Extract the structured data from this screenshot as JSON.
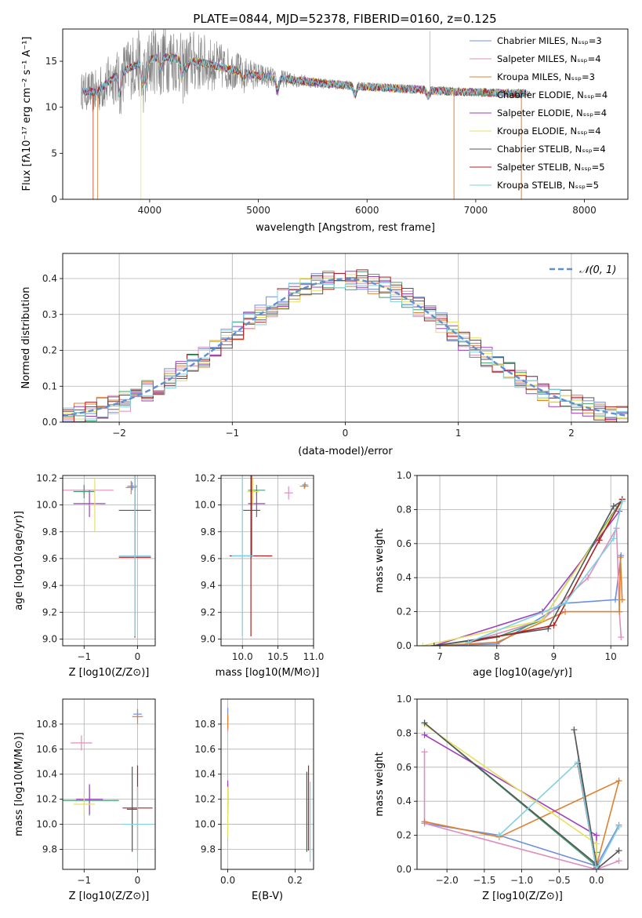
{
  "colors": [
    "#6f8fdf",
    "#df8fbf",
    "#e0802f",
    "#3fa06f",
    "#9f3fbf",
    "#e6e05f",
    "#555555",
    "#b02020",
    "#7fd0e0"
  ],
  "chart_data": [
    {
      "type": "line",
      "title": "PLATE=0844, MJD=52378, FIBERID=0160, z=0.125",
      "xlabel": "wavelength [Angstrom, rest frame]",
      "ylabel": "Flux [f_λ 10^-17 erg cm^-2 s^-1 A^-1]",
      "xlim": [
        3200,
        8400
      ],
      "ylim": [
        0,
        18.5
      ],
      "xticks": [
        4000,
        5000,
        6000,
        7000,
        8000
      ],
      "yticks": [
        0,
        5,
        10,
        15
      ],
      "legend_position": "top-right",
      "series": [
        {
          "name": "Chabrier MILES, N_SSP=3",
          "color": "#6f8fdf"
        },
        {
          "name": "Salpeter MILES, N_SSP=4",
          "color": "#df8fbf"
        },
        {
          "name": "Kroupa MILES, N_SSP=3",
          "color": "#e0802f"
        },
        {
          "name": "Chabrier ELODIE, N_SSP=4",
          "color": "#3fa06f"
        },
        {
          "name": "Salpeter ELODIE, N_SSP=4",
          "color": "#9f3fbf"
        },
        {
          "name": "Kroupa ELODIE, N_SSP=4",
          "color": "#e6e05f"
        },
        {
          "name": "Chabrier STELIB, N_SSP=4",
          "color": "#555555"
        },
        {
          "name": "Salpeter STELIB, N_SSP=5",
          "color": "#b02020"
        },
        {
          "name": "Kroupa STELIB, N_SSP=5",
          "color": "#7fd0e0"
        }
      ],
      "data_continuum": {
        "x": [
          3370,
          3500,
          3700,
          3900,
          4100,
          4300,
          4500,
          4800,
          5000,
          5300,
          5600,
          5900,
          6200,
          6500,
          6800,
          7100,
          7300,
          7500
        ],
        "y": [
          11.8,
          11.6,
          13.5,
          14.8,
          15.5,
          15.2,
          14.8,
          14.0,
          13.4,
          13.0,
          12.6,
          12.3,
          12.1,
          11.9,
          11.7,
          11.6,
          11.5,
          11.5
        ]
      }
    },
    {
      "type": "line",
      "xlabel": "(data-model)/error",
      "ylabel": "Normed distribution",
      "xlim": [
        -2.5,
        2.5
      ],
      "ylim": [
        0,
        0.47
      ],
      "xticks": [
        -2,
        -1,
        0,
        1,
        2
      ],
      "yticks": [
        0.0,
        0.1,
        0.2,
        0.3,
        0.4
      ],
      "gaussian_label": "𝒩(0, 1)",
      "hist_bin_width": 0.1
    },
    {
      "type": "scatter",
      "xlabel": "Z [log10(Z/Z⊙)]",
      "ylabel": "age  [log10(age/yr)]",
      "xlim": [
        -1.4,
        0.33
      ],
      "ylim": [
        8.95,
        10.22
      ],
      "xticks": [
        -1,
        0
      ],
      "yticks": [
        9.0,
        9.2,
        9.4,
        9.6,
        9.8,
        10.0,
        10.2
      ],
      "points": [
        {
          "x": -0.12,
          "y": 10.13,
          "xerr": 0.1,
          "yerr": 0.05,
          "s": 2
        },
        {
          "x": -1.0,
          "y": 10.11,
          "xerr": 0.55,
          "yerr": 0.03,
          "s": 1
        },
        {
          "x": -0.9,
          "y": 10.01,
          "xerr": 0.3,
          "yerr": 0.1,
          "s": 4
        },
        {
          "x": -0.1,
          "y": 10.14,
          "xerr": 0.09,
          "yerr": 0.03,
          "s": 0
        },
        {
          "x": -1.0,
          "y": 10.1,
          "xerr": 0.2,
          "yerr": 0.05,
          "s": 3
        },
        {
          "x": -0.8,
          "y": 10.0,
          "xerr": 0.1,
          "yerr": 0.2,
          "s": 5
        },
        {
          "x": -0.05,
          "y": 9.96,
          "xerr": 0.3,
          "yerr": 0.35,
          "s": 6
        },
        {
          "x": -0.05,
          "y": 9.61,
          "xerr": 0.3,
          "yerr": 0.6,
          "s": 7
        },
        {
          "x": -0.05,
          "y": 9.62,
          "xerr": 0.3,
          "yerr": 0.6,
          "s": 8
        }
      ]
    },
    {
      "type": "scatter",
      "xlabel": "mass [log10(M/M⊙)]",
      "xlim": [
        9.7,
        11.0
      ],
      "ylim": [
        8.95,
        10.22
      ],
      "xticks": [
        10.0,
        10.5,
        11.0
      ],
      "yticks": [
        9.0,
        9.2,
        9.4,
        9.6,
        9.8,
        10.0,
        10.2
      ],
      "points": [
        {
          "x": 10.88,
          "y": 10.15,
          "xerr": 0.04,
          "yerr": 0.02,
          "s": 0
        },
        {
          "x": 10.65,
          "y": 10.09,
          "xerr": 0.06,
          "yerr": 0.05,
          "s": 1
        },
        {
          "x": 10.87,
          "y": 10.14,
          "xerr": 0.06,
          "yerr": 0.02,
          "s": 2
        },
        {
          "x": 10.2,
          "y": 10.11,
          "xerr": 0.12,
          "yerr": 0.04,
          "s": 3
        },
        {
          "x": 10.2,
          "y": 10.01,
          "xerr": 0.12,
          "yerr": 0.1,
          "s": 4
        },
        {
          "x": 10.15,
          "y": 10.1,
          "xerr": 0.08,
          "yerr": 0.1,
          "s": 5
        },
        {
          "x": 10.13,
          "y": 9.96,
          "xerr": 0.12,
          "yerr": 0.35,
          "s": 6
        },
        {
          "x": 10.12,
          "y": 9.62,
          "xerr": 0.3,
          "yerr": 0.6,
          "s": 7
        },
        {
          "x": 10.0,
          "y": 9.62,
          "xerr": 0.15,
          "yerr": 0.6,
          "s": 8
        }
      ]
    },
    {
      "type": "line",
      "xlabel": "age  [log10(age/yr)]",
      "ylabel": "mass weight",
      "xlim": [
        6.6,
        10.3
      ],
      "ylim": [
        0,
        1.0
      ],
      "xticks": [
        7,
        8,
        9,
        10
      ],
      "yticks": [
        0.0,
        0.2,
        0.4,
        0.6,
        0.8,
        1.0
      ],
      "series": [
        {
          "s": 0,
          "x": [
            6.9,
            8.0,
            9.2,
            10.08,
            10.18
          ],
          "y": [
            0.0,
            0.01,
            0.25,
            0.27,
            0.53
          ]
        },
        {
          "s": 1,
          "x": [
            7.5,
            8.8,
            9.6,
            10.1,
            10.15,
            10.18
          ],
          "y": [
            0.02,
            0.15,
            0.4,
            0.69,
            0.2,
            0.05
          ]
        },
        {
          "s": 2,
          "x": [
            6.9,
            8.0,
            9.2,
            10.15,
            10.17,
            10.2
          ],
          "y": [
            0.0,
            0.02,
            0.2,
            0.2,
            0.52,
            0.27
          ]
        },
        {
          "s": 3,
          "x": [
            6.9,
            8.0,
            8.8,
            10.2
          ],
          "y": [
            0.0,
            0.05,
            0.15,
            0.86
          ]
        },
        {
          "s": 4,
          "x": [
            6.9,
            8.8,
            10.15
          ],
          "y": [
            0.0,
            0.2,
            0.79
          ]
        },
        {
          "s": 5,
          "x": [
            6.7,
            8.8,
            10.2
          ],
          "y": [
            0.0,
            0.15,
            0.85
          ]
        },
        {
          "s": 6,
          "x": [
            6.9,
            8.9,
            10.05,
            10.2
          ],
          "y": [
            0.0,
            0.1,
            0.82,
            0.85
          ]
        },
        {
          "s": 7,
          "x": [
            7.5,
            9.0,
            9.8,
            10.2
          ],
          "y": [
            0.02,
            0.12,
            0.62,
            0.86
          ]
        },
        {
          "s": 8,
          "x": [
            7.5,
            9.2,
            10.05,
            10.2
          ],
          "y": [
            0.02,
            0.25,
            0.63,
            0.85
          ]
        }
      ]
    },
    {
      "type": "scatter",
      "xlabel": "Z [log10(Z/Z⊙)]",
      "ylabel": "mass [log10(M/M⊙)]",
      "xlim": [
        -1.4,
        0.33
      ],
      "ylim": [
        9.64,
        11.0
      ],
      "xticks": [
        -1,
        0
      ],
      "yticks": [
        9.8,
        10.0,
        10.2,
        10.4,
        10.6,
        10.8
      ],
      "points": [
        {
          "x": 0.0,
          "y": 10.88,
          "xerr": 0.08,
          "yerr": 0.04,
          "s": 0
        },
        {
          "x": -1.05,
          "y": 10.65,
          "xerr": 0.2,
          "yerr": 0.06,
          "s": 1
        },
        {
          "x": 0.0,
          "y": 10.86,
          "xerr": 0.1,
          "yerr": 0.06,
          "s": 2
        },
        {
          "x": -0.9,
          "y": 10.19,
          "xerr": 0.55,
          "yerr": 0.12,
          "s": 3
        },
        {
          "x": -0.9,
          "y": 10.2,
          "xerr": 0.25,
          "yerr": 0.12,
          "s": 4
        },
        {
          "x": -1.0,
          "y": 10.16,
          "xerr": 0.2,
          "yerr": 0.08,
          "s": 5
        },
        {
          "x": -0.1,
          "y": 10.12,
          "xerr": 0.1,
          "yerr": 0.34,
          "s": 6
        },
        {
          "x": 0.0,
          "y": 10.13,
          "xerr": 0.28,
          "yerr": 0.34,
          "s": 7
        },
        {
          "x": 0.0,
          "y": 10.0,
          "xerr": 0.28,
          "yerr": 0.3,
          "s": 8
        }
      ]
    },
    {
      "type": "scatter",
      "xlabel": "E(B-V)",
      "xlim": [
        -0.02,
        0.255
      ],
      "ylim": [
        9.64,
        11.0
      ],
      "xticks": [
        0.0,
        0.2
      ],
      "yticks": [
        9.8,
        10.0,
        10.2,
        10.4,
        10.6,
        10.8
      ],
      "points": [
        {
          "x": 0.0,
          "y": 10.88,
          "xerr": 0.0,
          "yerr": 0.05,
          "s": 0
        },
        {
          "x": 0.0,
          "y": 10.8,
          "xerr": 0.0,
          "yerr": 0.06,
          "s": 1
        },
        {
          "x": 0.0,
          "y": 10.82,
          "xerr": 0.0,
          "yerr": 0.06,
          "s": 2
        },
        {
          "x": 0.0,
          "y": 10.2,
          "xerr": 0.0,
          "yerr": 0.12,
          "s": 3
        },
        {
          "x": 0.0,
          "y": 10.25,
          "xerr": 0.0,
          "yerr": 0.1,
          "s": 4
        },
        {
          "x": 0.0,
          "y": 10.1,
          "xerr": 0.0,
          "yerr": 0.2,
          "s": 5
        },
        {
          "x": 0.235,
          "y": 10.1,
          "xerr": 0.0,
          "yerr": 0.32,
          "s": 6
        },
        {
          "x": 0.24,
          "y": 10.13,
          "xerr": 0.0,
          "yerr": 0.34,
          "s": 7
        },
        {
          "x": 0.245,
          "y": 10.02,
          "xerr": 0.0,
          "yerr": 0.32,
          "s": 8
        }
      ]
    },
    {
      "type": "line",
      "xlabel": "Z [log10(Z/Z⊙)]",
      "ylabel": "mass weight",
      "xlim": [
        -2.4,
        0.42
      ],
      "ylim": [
        0,
        1.0
      ],
      "xticks": [
        -2.0,
        -1.5,
        -1.0,
        -0.5,
        0.0
      ],
      "yticks": [
        0.0,
        0.2,
        0.4,
        0.6,
        0.8,
        1.0
      ],
      "series": [
        {
          "s": 0,
          "x": [
            -2.3,
            -1.3,
            0.0,
            0.3
          ],
          "y": [
            0.27,
            0.2,
            0.02,
            0.26
          ]
        },
        {
          "s": 1,
          "x": [
            -2.3,
            -2.3,
            0.0,
            0.3
          ],
          "y": [
            0.69,
            0.27,
            0.0,
            0.05
          ]
        },
        {
          "s": 2,
          "x": [
            -2.3,
            -1.3,
            0.3,
            0.0
          ],
          "y": [
            0.28,
            0.19,
            0.52,
            0.02
          ]
        },
        {
          "s": 3,
          "x": [
            -2.3,
            0.0,
            0.0
          ],
          "y": [
            0.86,
            0.02,
            0.1
          ]
        },
        {
          "s": 4,
          "x": [
            -2.3,
            0.0,
            0.0
          ],
          "y": [
            0.79,
            0.2,
            0.01
          ]
        },
        {
          "s": 5,
          "x": [
            -2.3,
            0.0,
            0.0
          ],
          "y": [
            0.85,
            0.15,
            0.0
          ]
        },
        {
          "s": 6,
          "x": [
            -2.3,
            0.0,
            -0.3,
            0.0,
            0.3
          ],
          "y": [
            0.86,
            0.03,
            0.82,
            0.0,
            0.11
          ]
        },
        {
          "s": 7,
          "x": [
            -0.25,
            0.0
          ],
          "y": [
            0.62,
            0.0
          ]
        },
        {
          "s": 8,
          "x": [
            -1.3,
            -0.25,
            0.0,
            0.3
          ],
          "y": [
            0.2,
            0.63,
            0.0,
            0.25
          ]
        }
      ]
    }
  ]
}
